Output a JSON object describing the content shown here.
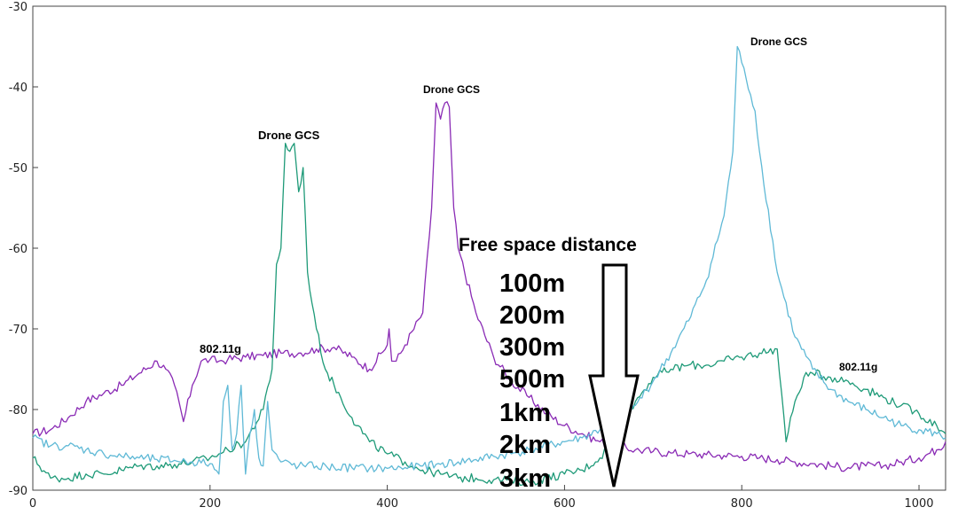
{
  "chart_data": {
    "type": "line",
    "title": "",
    "xlabel": "",
    "ylabel": "",
    "xlim": [
      0,
      1030
    ],
    "ylim": [
      -90,
      -30
    ],
    "x_ticks": [
      "0",
      "200",
      "400",
      "600",
      "800",
      "1000"
    ],
    "x_tick_values": [
      0,
      200,
      400,
      600,
      800,
      1000
    ],
    "y_ticks": [
      "-30",
      "-40",
      "-50",
      "-60",
      "-70",
      "-80",
      "-90"
    ],
    "y_tick_values": [
      -30,
      -40,
      -50,
      -60,
      -70,
      -80,
      -90
    ],
    "grid": false,
    "series": [
      {
        "color": "#8a2bb5",
        "x": [
          0,
          20,
          40,
          60,
          80,
          100,
          120,
          140,
          150,
          160,
          170,
          180,
          190,
          200,
          210,
          220,
          240,
          260,
          280,
          300,
          320,
          340,
          360,
          380,
          400,
          402,
          405,
          410,
          420,
          440,
          450,
          455,
          460,
          465,
          470,
          475,
          480,
          500,
          520,
          540,
          560,
          580,
          600,
          620,
          640,
          660,
          680,
          700,
          720,
          740,
          760,
          780,
          800,
          820,
          840,
          860,
          880,
          900,
          920,
          940,
          960,
          980,
          1000,
          1020,
          1030
        ],
        "y": [
          -83,
          -82.5,
          -81,
          -79,
          -78,
          -77,
          -75.5,
          -74,
          -75,
          -77,
          -81.5,
          -77,
          -74,
          -73.8,
          -74,
          -73.8,
          -73.5,
          -73.3,
          -73,
          -73,
          -72.5,
          -72.3,
          -73.5,
          -75,
          -72,
          -70,
          -74,
          -74,
          -72,
          -68,
          -55,
          -42,
          -44,
          -42,
          -42.5,
          -55,
          -60,
          -68,
          -73.5,
          -76.5,
          -78.5,
          -80.5,
          -82,
          -83,
          -84,
          -84.5,
          -85,
          -85.2,
          -85.4,
          -85.5,
          -85.6,
          -85.7,
          -85.8,
          -86,
          -86.2,
          -86.5,
          -86.7,
          -87,
          -87.2,
          -87,
          -87,
          -86.5,
          -86,
          -85,
          -84
        ]
      },
      {
        "color": "#1e9a78",
        "x": [
          0,
          20,
          40,
          60,
          80,
          100,
          120,
          140,
          160,
          180,
          200,
          220,
          240,
          260,
          270,
          275,
          280,
          285,
          290,
          295,
          300,
          305,
          310,
          320,
          330,
          340,
          360,
          380,
          400,
          420,
          440,
          460,
          480,
          500,
          520,
          540,
          560,
          580,
          600,
          620,
          640,
          660,
          680,
          700,
          720,
          740,
          760,
          780,
          800,
          820,
          840,
          845,
          850,
          860,
          870,
          880,
          900,
          920,
          940,
          960,
          980,
          1000,
          1020,
          1030
        ],
        "y": [
          -86,
          -88.5,
          -88.5,
          -88,
          -88,
          -87.5,
          -87,
          -87,
          -86.8,
          -86.5,
          -86,
          -85,
          -84,
          -80,
          -75,
          -62,
          -60,
          -47,
          -48,
          -47,
          -53,
          -50,
          -63,
          -70,
          -75,
          -77,
          -81,
          -84,
          -85.5,
          -86.5,
          -87.5,
          -88,
          -88.5,
          -88.5,
          -88.7,
          -88.8,
          -89,
          -88.5,
          -88,
          -87.5,
          -86,
          -83,
          -79,
          -76,
          -75,
          -74.5,
          -74.5,
          -74,
          -73.5,
          -73,
          -72.5,
          -78,
          -84,
          -79,
          -76,
          -75.5,
          -76,
          -76.5,
          -77.5,
          -78.5,
          -79.5,
          -80.5,
          -82,
          -83
        ]
      },
      {
        "color": "#5fb9d6",
        "x": [
          0,
          20,
          40,
          60,
          80,
          100,
          120,
          140,
          160,
          180,
          200,
          210,
          215,
          220,
          225,
          230,
          235,
          240,
          245,
          250,
          255,
          260,
          265,
          270,
          280,
          300,
          320,
          340,
          360,
          380,
          400,
          420,
          440,
          460,
          480,
          500,
          520,
          540,
          560,
          580,
          600,
          620,
          640,
          660,
          680,
          700,
          720,
          740,
          760,
          780,
          790,
          795,
          800,
          805,
          810,
          815,
          820,
          840,
          860,
          880,
          900,
          920,
          940,
          960,
          980,
          1000,
          1020,
          1030
        ],
        "y": [
          -83.5,
          -84.5,
          -84.5,
          -85,
          -85.5,
          -85.8,
          -86,
          -86.2,
          -86.3,
          -86.5,
          -86.7,
          -88,
          -79,
          -77,
          -85,
          -83,
          -77,
          -88,
          -83,
          -80,
          -86,
          -87,
          -79,
          -85,
          -86.5,
          -87,
          -87,
          -87.2,
          -87.2,
          -87.3,
          -87.3,
          -87.2,
          -87,
          -86.8,
          -86.5,
          -86.2,
          -85.8,
          -85.5,
          -85,
          -84.5,
          -84,
          -83.5,
          -82.5,
          -81.5,
          -79.5,
          -76.5,
          -73,
          -69,
          -64,
          -56,
          -48,
          -35,
          -37,
          -39,
          -41,
          -43,
          -48,
          -63,
          -71,
          -75,
          -77.5,
          -79,
          -80,
          -81,
          -82,
          -82.5,
          -83,
          -83.5
        ]
      }
    ],
    "annotations": {
      "drone_gcs_1": "Drone GCS",
      "drone_gcs_2": "Drone GCS",
      "drone_gcs_3": "Drone GCS",
      "wifi_1": "802.11g",
      "wifi_2": "802.11g",
      "distance_title": "Free space distance",
      "distances": [
        "100m",
        "200m",
        "300m",
        "500m",
        "1km",
        "2km",
        "3km"
      ]
    }
  }
}
